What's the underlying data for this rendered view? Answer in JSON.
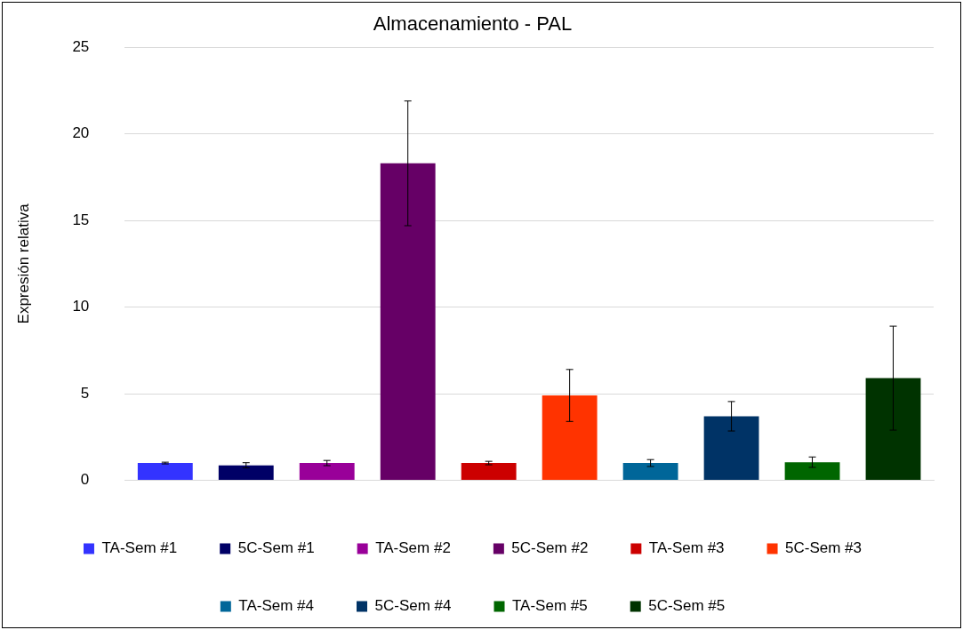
{
  "chart_data": {
    "type": "bar",
    "title": "Almacenamiento - PAL",
    "ylabel": "Expresión relativa",
    "categories": [
      null,
      null,
      null,
      null,
      null,
      null,
      null,
      null,
      null,
      null
    ],
    "series": [
      {
        "name": "TA-Sem #1",
        "color": "#3333ff",
        "values": [
          1.0,
          null,
          null,
          null,
          null,
          null,
          null,
          null,
          null,
          null
        ],
        "errors": [
          0.05,
          null,
          null,
          null,
          null,
          null,
          null,
          null,
          null,
          null
        ]
      },
      {
        "name": "5C-Sem #1",
        "color": "#000066",
        "values": [
          null,
          0.87,
          null,
          null,
          null,
          null,
          null,
          null,
          null,
          null
        ],
        "errors": [
          null,
          0.15,
          null,
          null,
          null,
          null,
          null,
          null,
          null,
          null
        ]
      },
      {
        "name": "TA-Sem #2",
        "color": "#990099",
        "values": [
          null,
          null,
          1.0,
          null,
          null,
          null,
          null,
          null,
          null,
          null
        ],
        "errors": [
          null,
          null,
          0.15,
          null,
          null,
          null,
          null,
          null,
          null,
          null
        ]
      },
      {
        "name": "5C-Sem #2",
        "color": "#660066",
        "values": [
          null,
          null,
          null,
          18.3,
          null,
          null,
          null,
          null,
          null,
          null
        ],
        "errors": [
          null,
          null,
          null,
          3.6,
          null,
          null,
          null,
          null,
          null,
          null
        ]
      },
      {
        "name": "TA-Sem #3",
        "color": "#cc0000",
        "values": [
          null,
          null,
          null,
          null,
          1.0,
          null,
          null,
          null,
          null,
          null
        ],
        "errors": [
          null,
          null,
          null,
          null,
          0.1,
          null,
          null,
          null,
          null,
          null
        ]
      },
      {
        "name": "5C-Sem #3",
        "color": "#ff3300",
        "values": [
          null,
          null,
          null,
          null,
          null,
          4.9,
          null,
          null,
          null,
          null
        ],
        "errors": [
          null,
          null,
          null,
          null,
          null,
          1.5,
          null,
          null,
          null,
          null
        ]
      },
      {
        "name": "TA-Sem #4",
        "color": "#006699",
        "values": [
          null,
          null,
          null,
          null,
          null,
          null,
          1.0,
          null,
          null,
          null
        ],
        "errors": [
          null,
          null,
          null,
          null,
          null,
          null,
          0.2,
          null,
          null,
          null
        ]
      },
      {
        "name": "5C-Sem #4",
        "color": "#003366",
        "values": [
          null,
          null,
          null,
          null,
          null,
          null,
          null,
          3.7,
          null,
          null
        ],
        "errors": [
          null,
          null,
          null,
          null,
          null,
          null,
          null,
          0.85,
          null,
          null
        ]
      },
      {
        "name": "TA-Sem #5",
        "color": "#006600",
        "values": [
          null,
          null,
          null,
          null,
          null,
          null,
          null,
          null,
          1.05,
          null
        ],
        "errors": [
          null,
          null,
          null,
          null,
          null,
          null,
          null,
          null,
          0.3,
          null
        ]
      },
      {
        "name": "5C-Sem #5",
        "color": "#003300",
        "values": [
          null,
          null,
          null,
          null,
          null,
          null,
          null,
          null,
          null,
          5.9
        ],
        "errors": [
          null,
          null,
          null,
          null,
          null,
          null,
          null,
          null,
          null,
          3.0
        ]
      }
    ],
    "ylim": [
      0,
      25
    ],
    "yticks": [
      0,
      5,
      10,
      15,
      20,
      25
    ],
    "grid": "y",
    "legend": "bottom"
  }
}
